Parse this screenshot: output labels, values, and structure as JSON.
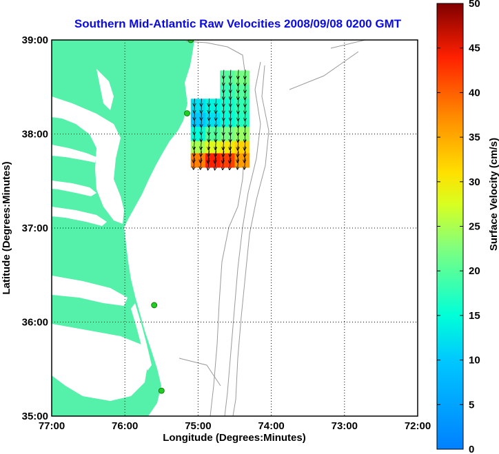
{
  "chart_data": {
    "type": "heatmap",
    "title": "Southern Mid-Atlantic Raw Velocities 2008/09/08 0200 GMT",
    "xlabel": "Longitude (Degrees:Minutes)",
    "ylabel": "Latitude (Degrees:Minutes)",
    "colorbar_label": "Surface Velocity (cm/s)",
    "x_ticks": [
      "77:00",
      "76:00",
      "75:00",
      "74:00",
      "73:00",
      "72:00"
    ],
    "y_ticks": [
      "39:00",
      "38:00",
      "37:00",
      "36:00",
      "35:00"
    ],
    "colorbar_ticks": [
      "50",
      "45",
      "40",
      "35",
      "30",
      "25",
      "20",
      "15",
      "10",
      "5",
      "0"
    ],
    "xlim": [
      -77,
      -72
    ],
    "ylim": [
      35,
      39
    ],
    "clim": [
      0,
      50
    ],
    "grid": true,
    "colormap": "jet",
    "land_color": "#55f0aa",
    "contour_color": "#999999",
    "station_color": "#22cc22",
    "stations": [
      {
        "lon": -75.1,
        "lat": 39.0
      },
      {
        "lon": -75.15,
        "lat": 38.22
      },
      {
        "lon": -75.6,
        "lat": 36.18
      },
      {
        "lon": -75.5,
        "lat": 35.27
      }
    ],
    "velocity_field": [
      {
        "lon": -74.6,
        "lat": 38.6,
        "speed": 20
      },
      {
        "lon": -74.4,
        "lat": 38.6,
        "speed": 22
      },
      {
        "lon": -74.6,
        "lat": 38.45,
        "speed": 18
      },
      {
        "lon": -74.4,
        "lat": 38.45,
        "speed": 20
      },
      {
        "lon": -75.0,
        "lat": 38.3,
        "speed": 12
      },
      {
        "lon": -74.8,
        "lat": 38.3,
        "speed": 14
      },
      {
        "lon": -74.6,
        "lat": 38.3,
        "speed": 16
      },
      {
        "lon": -74.4,
        "lat": 38.3,
        "speed": 18
      },
      {
        "lon": -75.0,
        "lat": 38.15,
        "speed": 10
      },
      {
        "lon": -74.8,
        "lat": 38.15,
        "speed": 12
      },
      {
        "lon": -74.6,
        "lat": 38.15,
        "speed": 15
      },
      {
        "lon": -74.4,
        "lat": 38.15,
        "speed": 17
      },
      {
        "lon": -75.0,
        "lat": 38.0,
        "speed": 15
      },
      {
        "lon": -74.8,
        "lat": 38.0,
        "speed": 20
      },
      {
        "lon": -74.6,
        "lat": 38.0,
        "speed": 22
      },
      {
        "lon": -74.4,
        "lat": 38.0,
        "speed": 24
      },
      {
        "lon": -75.0,
        "lat": 37.85,
        "speed": 25
      },
      {
        "lon": -74.8,
        "lat": 37.85,
        "speed": 28
      },
      {
        "lon": -74.6,
        "lat": 37.85,
        "speed": 30
      },
      {
        "lon": -74.4,
        "lat": 37.85,
        "speed": 32
      },
      {
        "lon": -75.0,
        "lat": 37.72,
        "speed": 38
      },
      {
        "lon": -74.8,
        "lat": 37.72,
        "speed": 44
      },
      {
        "lon": -74.6,
        "lat": 37.72,
        "speed": 42
      },
      {
        "lon": -74.4,
        "lat": 37.72,
        "speed": 36
      }
    ]
  }
}
